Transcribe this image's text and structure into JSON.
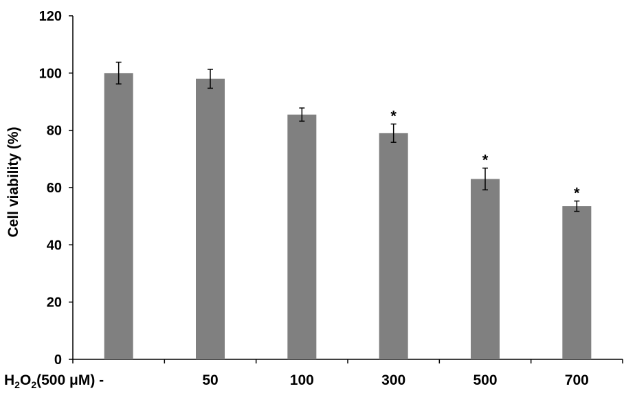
{
  "chart_data": {
    "type": "bar",
    "title": "",
    "ylabel": "Cell viability (%)",
    "xlabel_prefix": {
      "base1": "H",
      "sub1": "2",
      "base2": "O",
      "sub2": "2",
      "rest": "(500 μM) -"
    },
    "categories": [
      "",
      "50",
      "100",
      "300",
      "500",
      "700"
    ],
    "values": [
      100,
      98,
      85.5,
      79,
      63,
      53.5
    ],
    "errors": [
      3.8,
      3.3,
      2.3,
      3.2,
      3.8,
      1.8
    ],
    "significance": [
      "",
      "",
      "",
      "*",
      "*",
      "*"
    ],
    "ylim": [
      0,
      120
    ],
    "yticks": [
      0,
      20,
      40,
      60,
      80,
      100,
      120
    ],
    "grid": false,
    "legend": "none",
    "bar_color": "#808080"
  }
}
